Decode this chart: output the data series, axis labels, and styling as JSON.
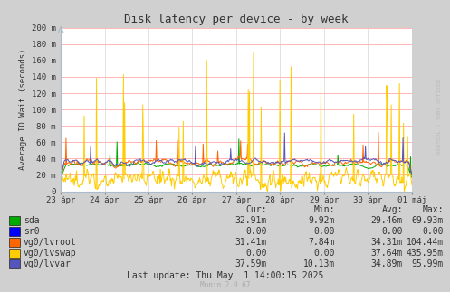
{
  "title": "Disk latency per device - by week",
  "ylabel": "Average IO Wait (seconds)",
  "background_color": "#d0d0d0",
  "plot_bg_color": "#ffffff",
  "grid_color_h": "#ffaaaa",
  "grid_color_v": "#cccccc",
  "ylim": [
    0,
    200
  ],
  "yticks": [
    0,
    20,
    40,
    60,
    80,
    100,
    120,
    140,
    160,
    180,
    200
  ],
  "ytick_labels": [
    "0",
    "20 m",
    "40 m",
    "60 m",
    "80 m",
    "100 m",
    "120 m",
    "140 m",
    "160 m",
    "180 m",
    "200 m"
  ],
  "xtick_labels": [
    "23 ápr",
    "24 ápr",
    "25 ápr",
    "26 ápr",
    "27 ápr",
    "28 ápr",
    "29 ápr",
    "30 ápr",
    "01 máj"
  ],
  "series": [
    {
      "name": "sda",
      "color": "#00aa00"
    },
    {
      "name": "sr0",
      "color": "#0000ff"
    },
    {
      "name": "vg0/lvroot",
      "color": "#ff6600"
    },
    {
      "name": "vg0/lvswap",
      "color": "#ffcc00"
    },
    {
      "name": "vg0/lvvar",
      "color": "#5555bb"
    }
  ],
  "table_headers": [
    "Cur:",
    "Min:",
    "Avg:",
    "Max:"
  ],
  "table_data": [
    [
      "32.91m",
      "9.92m",
      "29.46m",
      "69.93m"
    ],
    [
      "0.00",
      "0.00",
      "0.00",
      "0.00"
    ],
    [
      "31.41m",
      "7.84m",
      "34.31m",
      "104.44m"
    ],
    [
      "0.00",
      "0.00",
      "37.64m",
      "435.95m"
    ],
    [
      "37.59m",
      "10.13m",
      "34.89m",
      "95.99m"
    ]
  ],
  "last_update": "Last update: Thu May  1 14:00:15 2025",
  "munin_version": "Munin 2.0.67",
  "watermark": "RRDTOOL / TOBI OETIKER",
  "num_points": 600
}
